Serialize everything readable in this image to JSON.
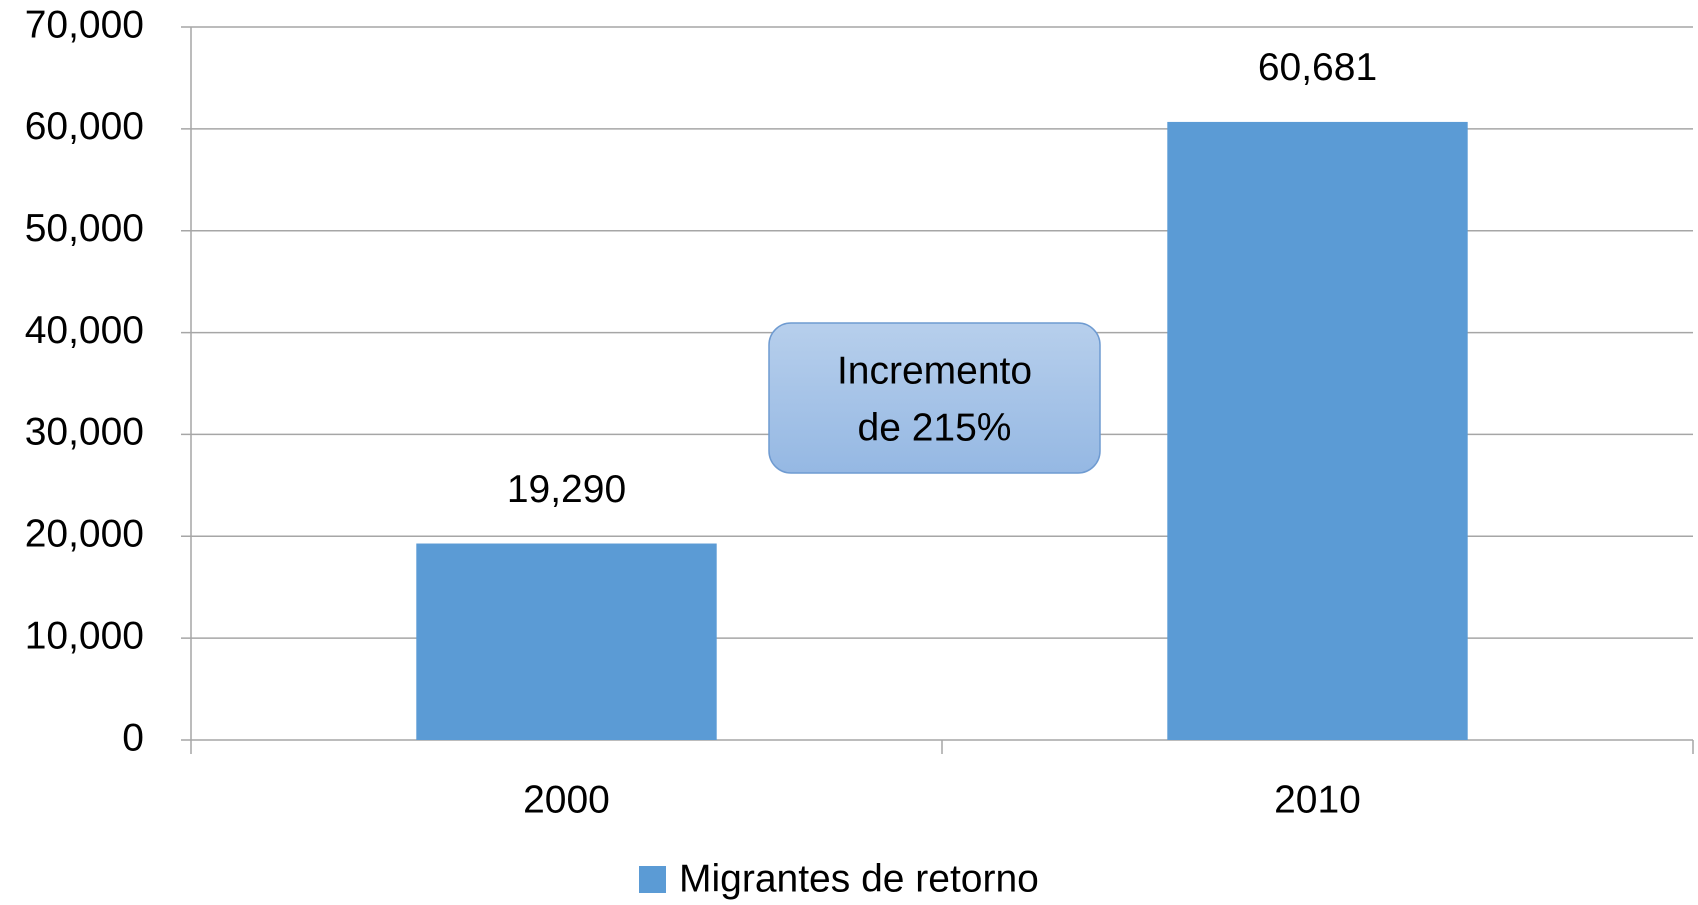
{
  "chart_data": {
    "type": "bar",
    "categories": [
      "2000",
      "2010"
    ],
    "series": [
      {
        "name": "Migrantes de retorno",
        "color": "#5b9bd5",
        "values": [
          19290,
          60681
        ],
        "value_labels": [
          "19,290",
          "60,681"
        ]
      }
    ],
    "ylim": [
      0,
      70000
    ],
    "yticks": [
      0,
      {
        "value": 10000,
        "label": "10,000"
      },
      {
        "value": 20000,
        "label": "20,000"
      },
      {
        "value": 30000,
        "label": "30,000"
      },
      {
        "value": 40000,
        "label": "40,000"
      },
      {
        "value": 50000,
        "label": "50,000"
      },
      {
        "value": 60000,
        "label": "60,000"
      },
      {
        "value": 70000,
        "label": "70,000"
      }
    ],
    "grid": true,
    "legend": "bottom",
    "annotation": [
      "Incremento",
      "de 215%"
    ]
  }
}
